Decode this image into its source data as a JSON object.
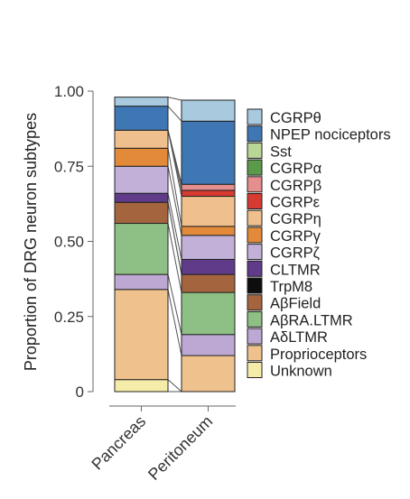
{
  "chart_data": {
    "type": "bar",
    "stacked": true,
    "categories": [
      "Pancreas",
      "Peritoneum"
    ],
    "ylabel": "Proportion of DRG neuron subtypes",
    "xlabel": "",
    "ylim": [
      0,
      1
    ],
    "yticks": [
      0,
      0.25,
      0.5,
      0.75,
      1.0
    ],
    "ytick_labels": [
      "0",
      "0.25",
      "0.50",
      "0.75",
      "1.00"
    ],
    "legend_position": "right",
    "connector_lines": true,
    "series": [
      {
        "name": "Unknown",
        "color": "#f6ecaa",
        "values": [
          0.04,
          0.0
        ]
      },
      {
        "name": "Proprioceptors",
        "color": "#eec18d",
        "values": [
          0.3,
          0.12
        ]
      },
      {
        "name": "AδLTMR",
        "color": "#bca8d3",
        "values": [
          0.05,
          0.07
        ]
      },
      {
        "name": "AβRA.LTMR",
        "color": "#8ebf84",
        "values": [
          0.17,
          0.14
        ]
      },
      {
        "name": "AβField",
        "color": "#a4643e",
        "values": [
          0.07,
          0.06
        ]
      },
      {
        "name": "TrpM8",
        "color": "#0e0e0e",
        "values": [
          0.0,
          0.0
        ]
      },
      {
        "name": "CLTMR",
        "color": "#5f3b8a",
        "values": [
          0.03,
          0.05
        ]
      },
      {
        "name": "CGRPζ",
        "color": "#c2b0d8",
        "values": [
          0.09,
          0.08
        ]
      },
      {
        "name": "CGRPγ",
        "color": "#e28a3a",
        "values": [
          0.06,
          0.03
        ]
      },
      {
        "name": "CGRPη",
        "color": "#efc08d",
        "values": [
          0.06,
          0.1
        ]
      },
      {
        "name": "CGRPε",
        "color": "#d63a30",
        "values": [
          0.0,
          0.02
        ]
      },
      {
        "name": "CGRPβ",
        "color": "#e58e8e",
        "values": [
          0.0,
          0.02
        ]
      },
      {
        "name": "CGRPα",
        "color": "#5b9a4b",
        "values": [
          0.0,
          0.0
        ]
      },
      {
        "name": "Sst",
        "color": "#b9d696",
        "values": [
          0.0,
          0.0
        ]
      },
      {
        "name": "NPEP nociceptors",
        "color": "#3e77b3",
        "values": [
          0.08,
          0.21
        ]
      },
      {
        "name": "CGRPθ",
        "color": "#a9c9de",
        "values": [
          0.03,
          0.07
        ]
      }
    ]
  }
}
